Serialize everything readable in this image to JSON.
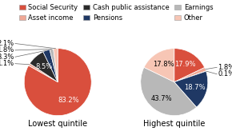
{
  "chart_data": [
    {
      "type": "pie",
      "title": "Lowest quintile",
      "categories": [
        "Social Security",
        "Asset income",
        "Cash public assistance",
        "Pensions",
        "Earnings",
        "Other"
      ],
      "values": [
        83.2,
        1.1,
        8.5,
        3.3,
        1.8,
        2.1
      ],
      "value_labels": [
        "83.2%",
        "1.1%",
        "8.5%",
        "3.3%",
        "1.8%",
        "2.1%"
      ],
      "colors": [
        "#d94f3d",
        "#f0a895",
        "#2b2b2b",
        "#1f3864",
        "#b8b8b8",
        "#f7c6b5"
      ],
      "data_labels": true,
      "legend": "upper center"
    },
    {
      "type": "pie",
      "title": "Highest quintile",
      "categories": [
        "Social Security",
        "Asset income",
        "Cash public assistance",
        "Pensions",
        "Earnings",
        "Other"
      ],
      "values": [
        17.9,
        1.8,
        0.1,
        18.7,
        43.7,
        17.8
      ],
      "value_labels": [
        "17.9%",
        "1.8%",
        "0.1%",
        "18.7%",
        "43.7%",
        "17.8%"
      ],
      "colors": [
        "#d94f3d",
        "#f0a895",
        "#2b2b2b",
        "#1f3864",
        "#b8b8b8",
        "#f7c6b5"
      ],
      "data_labels": true,
      "legend": "upper center"
    }
  ]
}
